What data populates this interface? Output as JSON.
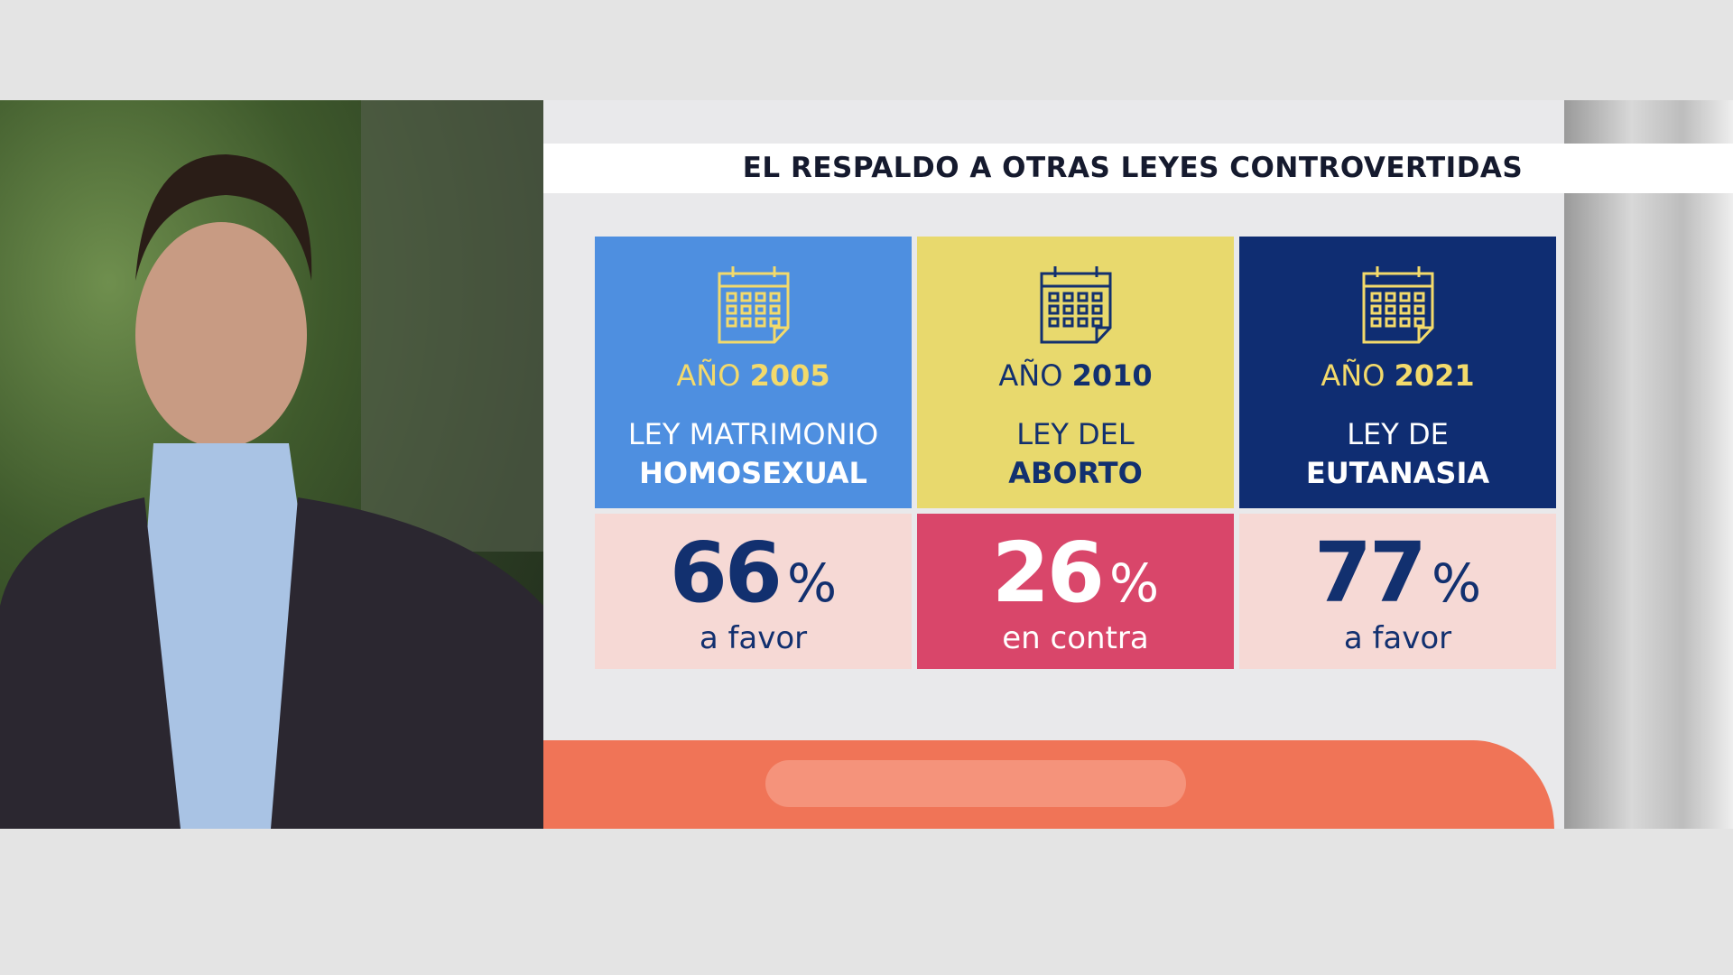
{
  "title": "EL RESPALDO A OTRAS LEYES CONTROVERTIDAS",
  "cards": [
    {
      "year_prefix": "AÑO",
      "year": "2005",
      "law_line1": "LEY MATRIMONIO",
      "law_line2": "HOMOSEXUAL",
      "percent": 66,
      "percent_sign": "%",
      "stance": "a favor"
    },
    {
      "year_prefix": "AÑO",
      "year": "2010",
      "law_line1": "LEY DEL",
      "law_line2": "ABORTO",
      "percent": 26,
      "percent_sign": "%",
      "stance": "en contra"
    },
    {
      "year_prefix": "AÑO",
      "year": "2021",
      "law_line1": "LEY DE",
      "law_line2": "EUTANASIA",
      "percent": 77,
      "percent_sign": "%",
      "stance": "a favor"
    }
  ]
}
